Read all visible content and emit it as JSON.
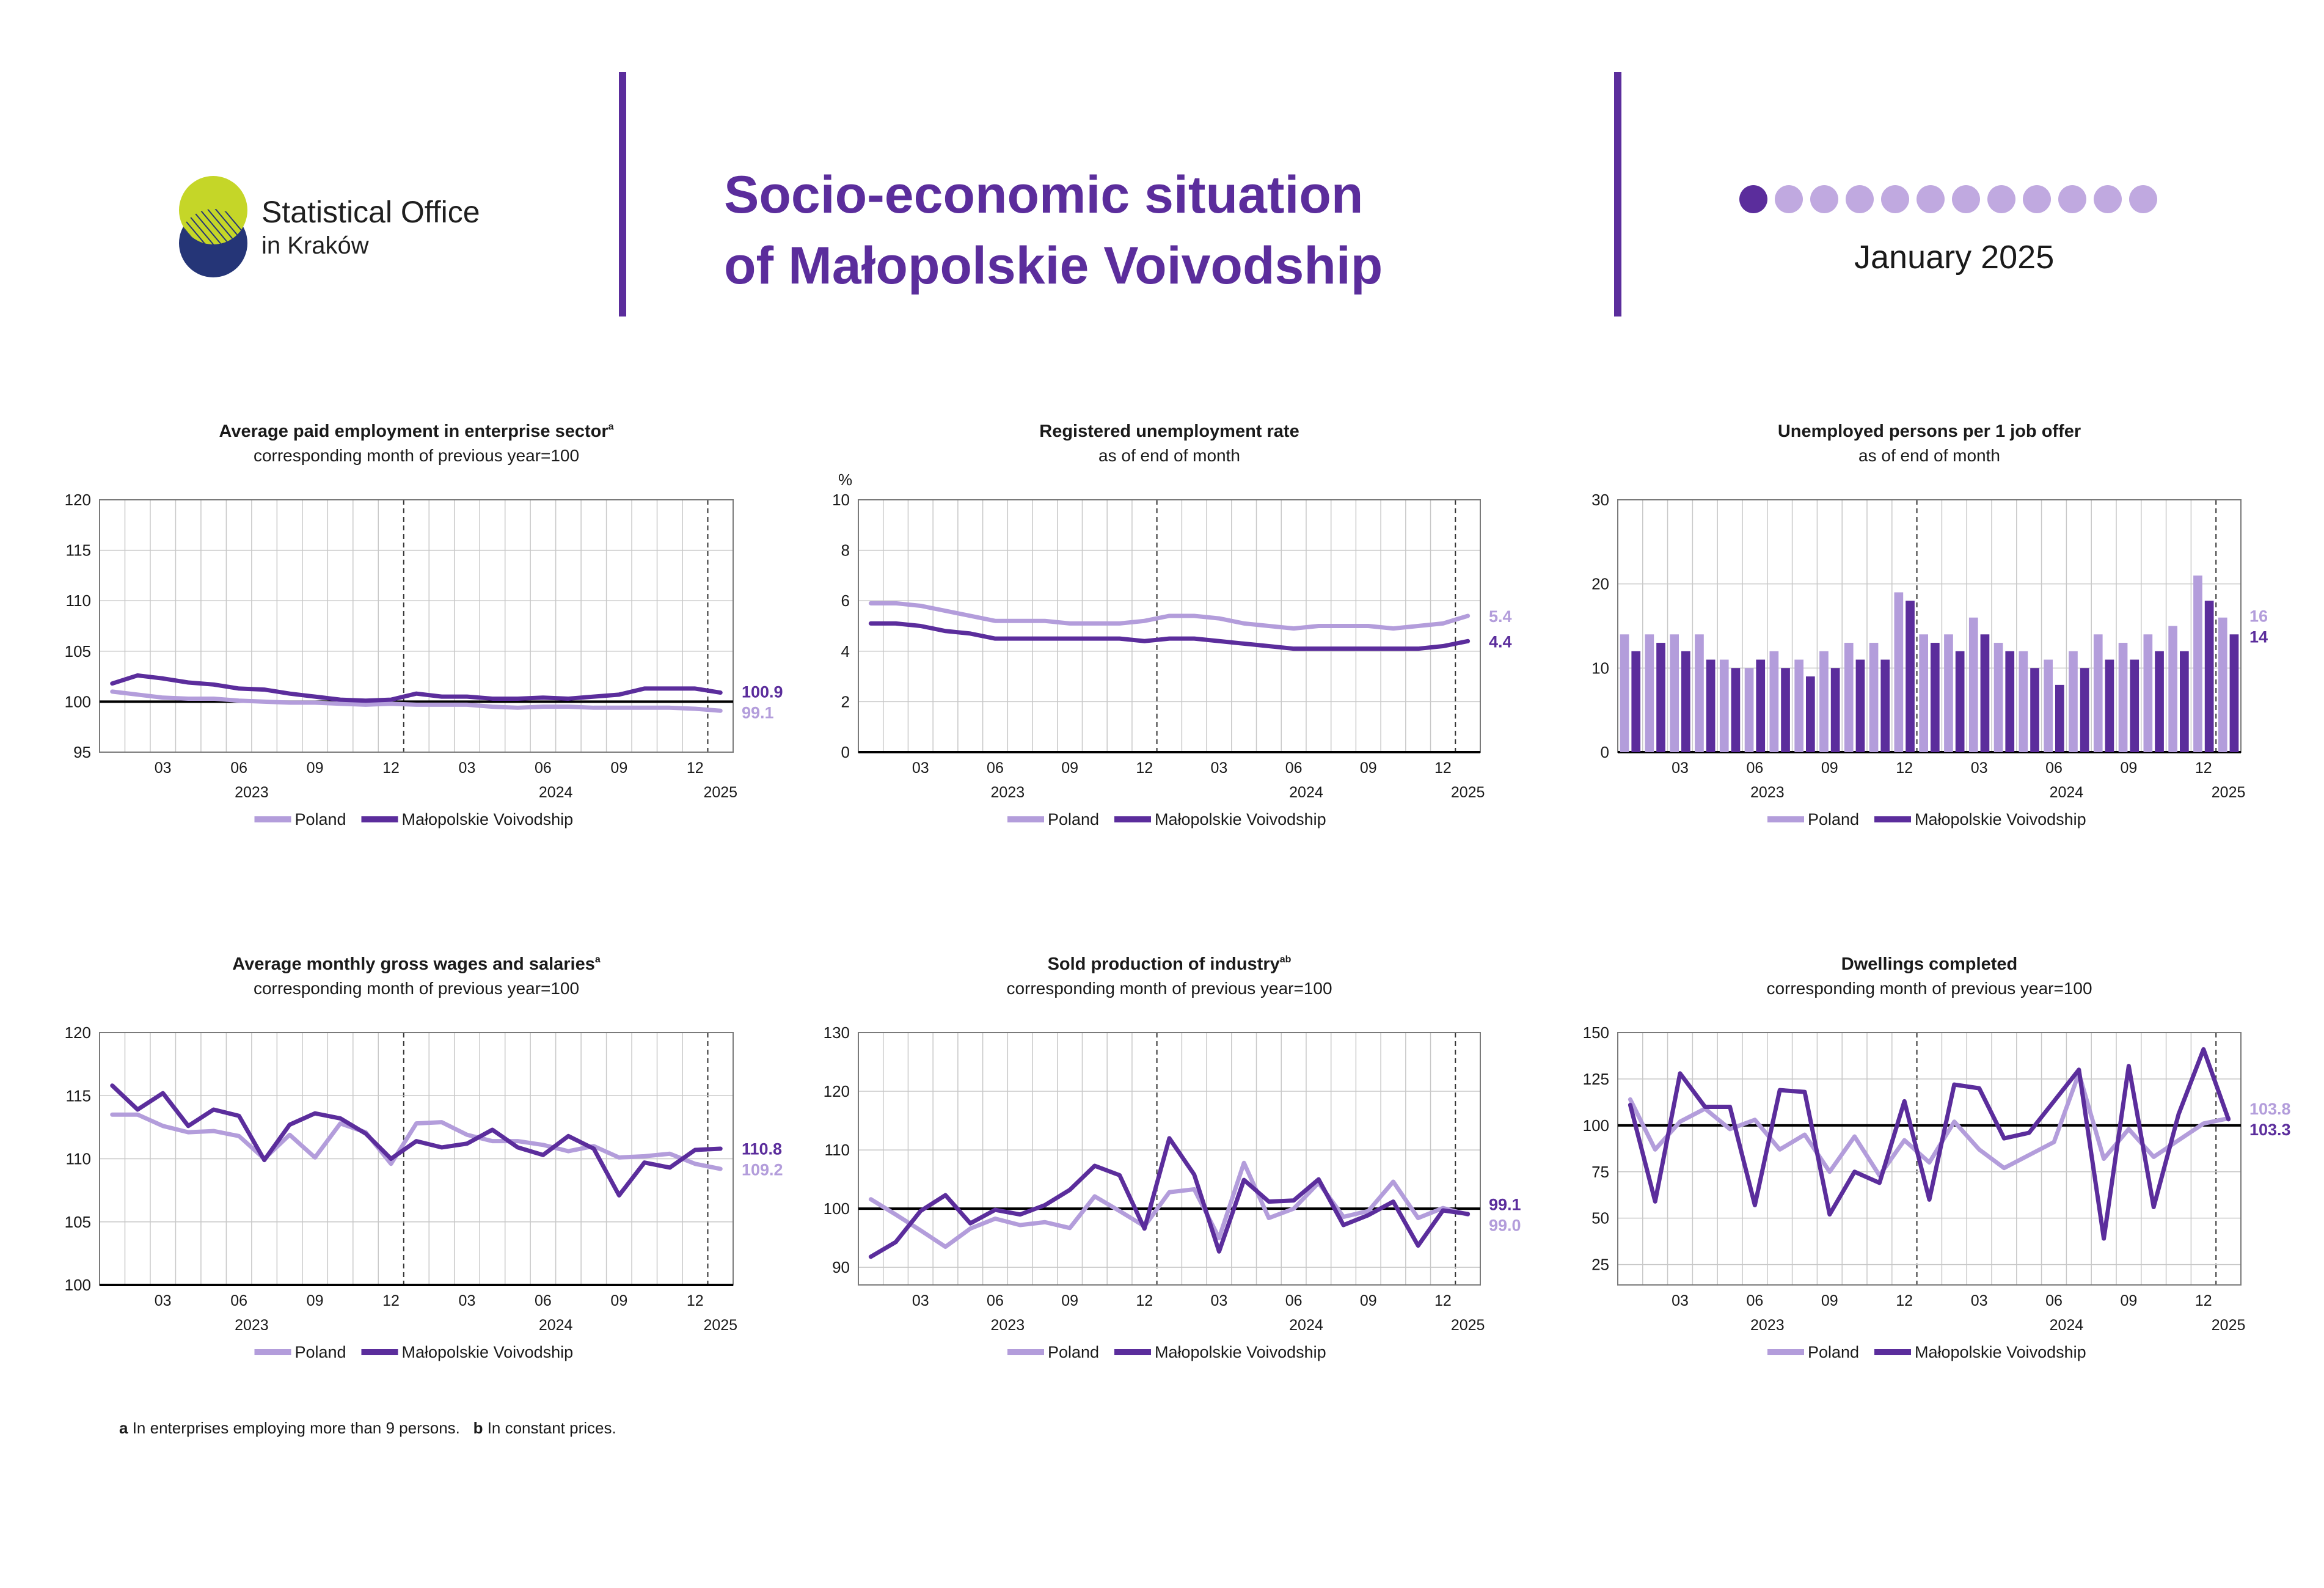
{
  "header": {
    "logo_line1": "Statistical Office",
    "logo_line2": "in Kraków",
    "title_line1": "Socio-economic situation",
    "title_line2": "of Małopolskie Voivodship",
    "date": "January 2025",
    "dot_count": 12,
    "active_dot": 0
  },
  "colors": {
    "poland": "#b39ddb",
    "malopolska": "#5b2d9c",
    "accent": "#5b2d9c",
    "logo_green": "#c5d628",
    "logo_navy": "#253577"
  },
  "legend": {
    "poland": "Poland",
    "malopolska": "Małopolskie Voivodship"
  },
  "footnote": {
    "a_mark": "a",
    "a_text": "In enterprises employing more than 9 persons.",
    "b_mark": "b",
    "b_text": "In constant prices."
  },
  "chart_data": [
    {
      "type": "line",
      "title": "Average paid employment in enterprise sector",
      "title_sup": "a",
      "subtitle": "corresponding month of previous year=100",
      "unit_label": "",
      "ylim": [
        95,
        120
      ],
      "yticks": [
        95,
        100,
        105,
        110,
        115,
        120
      ],
      "baseline": 100,
      "x_tick_labels": [
        "03",
        "06",
        "09",
        "12",
        "03",
        "06",
        "09",
        "12"
      ],
      "years": [
        "2023",
        "2024",
        "2025"
      ],
      "series": [
        {
          "name": "Poland",
          "values": [
            101.0,
            100.7,
            100.4,
            100.3,
            100.3,
            100.1,
            100.0,
            99.9,
            99.9,
            99.8,
            99.7,
            99.8,
            99.7,
            99.7,
            99.7,
            99.5,
            99.4,
            99.5,
            99.5,
            99.4,
            99.4,
            99.4,
            99.4,
            99.3,
            99.1
          ],
          "end_label": "99.1"
        },
        {
          "name": "Małopolskie Voivodship",
          "values": [
            101.8,
            102.6,
            102.3,
            101.9,
            101.7,
            101.3,
            101.2,
            100.8,
            100.5,
            100.2,
            100.1,
            100.2,
            100.8,
            100.5,
            100.5,
            100.3,
            100.3,
            100.4,
            100.3,
            100.5,
            100.7,
            101.3,
            101.3,
            101.3,
            100.9
          ],
          "end_label": "100.9"
        }
      ]
    },
    {
      "type": "line",
      "title": "Registered unemployment rate",
      "title_sup": "",
      "subtitle": "as of end of month",
      "unit_label": "%",
      "ylim": [
        0,
        10
      ],
      "yticks": [
        0,
        2,
        4,
        6,
        8,
        10
      ],
      "baseline": 0,
      "x_tick_labels": [
        "03",
        "06",
        "09",
        "12",
        "03",
        "06",
        "09",
        "12"
      ],
      "years": [
        "2023",
        "2024",
        "2025"
      ],
      "series": [
        {
          "name": "Poland",
          "values": [
            5.9,
            5.9,
            5.8,
            5.6,
            5.4,
            5.2,
            5.2,
            5.2,
            5.1,
            5.1,
            5.1,
            5.2,
            5.4,
            5.4,
            5.3,
            5.1,
            5.0,
            4.9,
            5.0,
            5.0,
            5.0,
            4.9,
            5.0,
            5.1,
            5.4
          ],
          "end_label": "5.4"
        },
        {
          "name": "Małopolskie Voivodship",
          "values": [
            5.1,
            5.1,
            5.0,
            4.8,
            4.7,
            4.5,
            4.5,
            4.5,
            4.5,
            4.5,
            4.5,
            4.4,
            4.5,
            4.5,
            4.4,
            4.3,
            4.2,
            4.1,
            4.1,
            4.1,
            4.1,
            4.1,
            4.1,
            4.2,
            4.4
          ],
          "end_label": "4.4"
        }
      ]
    },
    {
      "type": "bar",
      "title": "Unemployed persons per 1 job offer",
      "title_sup": "",
      "subtitle": "as of end of month",
      "unit_label": "",
      "ylim": [
        0,
        30
      ],
      "yticks": [
        0,
        10,
        20,
        30
      ],
      "baseline": 0,
      "x_tick_labels": [
        "03",
        "06",
        "09",
        "12",
        "03",
        "06",
        "09",
        "12"
      ],
      "years": [
        "2023",
        "2024",
        "2025"
      ],
      "series": [
        {
          "name": "Poland",
          "values": [
            14,
            14,
            14,
            14,
            11,
            10,
            12,
            11,
            12,
            13,
            13,
            19,
            14,
            14,
            16,
            13,
            12,
            11,
            12,
            14,
            13,
            14,
            15,
            21,
            16
          ],
          "end_label": "16"
        },
        {
          "name": "Małopolskie Voivodship",
          "values": [
            12,
            13,
            12,
            11,
            10,
            11,
            10,
            9,
            10,
            11,
            11,
            18,
            13,
            12,
            14,
            12,
            10,
            8,
            10,
            11,
            11,
            12,
            12,
            18,
            14
          ],
          "end_label": "14"
        }
      ]
    },
    {
      "type": "line",
      "title": "Average monthly gross wages and salaries",
      "title_sup": "a",
      "subtitle": "corresponding month of previous year=100",
      "unit_label": "",
      "ylim": [
        100,
        120
      ],
      "yticks": [
        100,
        105,
        110,
        115,
        120
      ],
      "baseline": 100,
      "x_tick_labels": [
        "03",
        "06",
        "09",
        "12",
        "03",
        "06",
        "09",
        "12"
      ],
      "years": [
        "2023",
        "2024",
        "2025"
      ],
      "series": [
        {
          "name": "Poland",
          "values": [
            113.5,
            113.5,
            112.6,
            112.1,
            112.2,
            111.8,
            110.0,
            111.9,
            110.1,
            112.8,
            112.1,
            109.6,
            112.8,
            112.9,
            111.9,
            111.4,
            111.4,
            111.1,
            110.6,
            111.0,
            110.1,
            110.2,
            110.4,
            109.6,
            109.2
          ],
          "end_label": "109.2"
        },
        {
          "name": "Małopolskie Voivodship",
          "values": [
            115.8,
            113.9,
            115.2,
            112.6,
            113.9,
            113.4,
            109.9,
            112.7,
            113.6,
            113.2,
            112.0,
            110.0,
            111.4,
            110.9,
            111.2,
            112.3,
            110.9,
            110.3,
            111.8,
            110.8,
            107.1,
            109.7,
            109.3,
            110.7,
            110.8
          ],
          "end_label": "110.8"
        }
      ]
    },
    {
      "type": "line",
      "title": "Sold production of industry",
      "title_sup": "ab",
      "subtitle": "corresponding month of previous year=100",
      "unit_label": "",
      "ylim": [
        87,
        130
      ],
      "yticks": [
        90,
        100,
        110,
        120,
        130
      ],
      "baseline": 100,
      "x_tick_labels": [
        "03",
        "06",
        "09",
        "12",
        "03",
        "06",
        "09",
        "12"
      ],
      "years": [
        "2023",
        "2024",
        "2025"
      ],
      "series": [
        {
          "name": "Poland",
          "values": [
            101.6,
            99.0,
            96.3,
            93.5,
            96.6,
            98.3,
            97.2,
            97.7,
            96.7,
            102.1,
            99.6,
            97.0,
            102.8,
            103.3,
            95.0,
            107.8,
            98.4,
            100.0,
            104.4,
            98.6,
            99.6,
            104.6,
            98.4,
            100.1,
            99.0
          ],
          "end_label": "99.0"
        },
        {
          "name": "Małopolskie Voivodship",
          "values": [
            91.8,
            94.3,
            99.6,
            102.3,
            97.5,
            99.8,
            99.0,
            100.6,
            103.2,
            107.3,
            105.7,
            96.6,
            112.0,
            105.8,
            92.7,
            104.9,
            101.2,
            101.4,
            105.0,
            97.2,
            98.9,
            101.2,
            93.7,
            99.7,
            99.1
          ],
          "end_label": "99.1"
        }
      ]
    },
    {
      "type": "line",
      "title": "Dwellings completed",
      "title_sup": "",
      "subtitle": "corresponding month of previous year=100",
      "unit_label": "",
      "ylim": [
        14,
        150
      ],
      "yticks": [
        25,
        50,
        75,
        100,
        125,
        150
      ],
      "baseline": 100,
      "x_tick_labels": [
        "03",
        "06",
        "09",
        "12",
        "03",
        "06",
        "09",
        "12"
      ],
      "years": [
        "2023",
        "2024",
        "2025"
      ],
      "series": [
        {
          "name": "Poland",
          "values": [
            114,
            87,
            102,
            109,
            98,
            103,
            87,
            95,
            75,
            94,
            73,
            92,
            80,
            102,
            87,
            77,
            84,
            91,
            128,
            82,
            98,
            83,
            92,
            101,
            103.8
          ],
          "end_label": "103.8"
        },
        {
          "name": "Małopolskie Voivodship",
          "values": [
            111,
            59,
            128,
            110,
            110,
            57,
            119,
            118,
            52,
            75,
            69,
            113,
            60,
            122,
            120,
            93,
            96,
            113,
            130,
            39,
            132,
            56,
            106,
            141,
            103.3
          ],
          "end_label": "103.3"
        }
      ]
    }
  ]
}
